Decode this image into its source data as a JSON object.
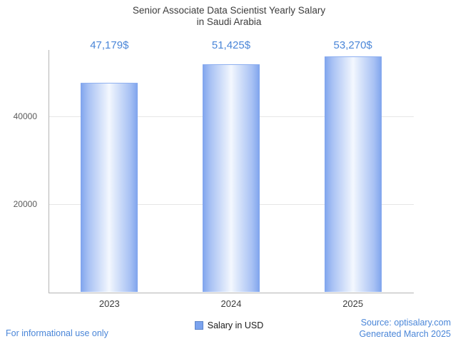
{
  "title_line1": "Senior Associate Data Scientist Yearly Salary",
  "title_line2": "in Saudi Arabia",
  "chart_data": {
    "type": "bar",
    "title": "Senior Associate Data Scientist Yearly Salary in Saudi Arabia",
    "categories": [
      "2023",
      "2024",
      "2025"
    ],
    "values": [
      47179,
      51425,
      53270
    ],
    "value_labels": [
      "47,179$",
      "51,425$",
      "53,270$"
    ],
    "series_name": "Salary in USD",
    "xlabel": "",
    "ylabel": "",
    "ylim": [
      0,
      55000
    ],
    "yticks": [
      20000,
      40000
    ],
    "ytick_labels": [
      "20000",
      "40000"
    ],
    "grid": true,
    "legend_position": "bottom",
    "bar_color": "#7ba3ee",
    "bar_gradient": "horizontal blue-white-blue cylinder"
  },
  "legend": {
    "label": "Salary in USD"
  },
  "footer": {
    "disclaimer": "For informational use only",
    "source": "Source: optisalary.com",
    "generated": "Generated March 2025"
  },
  "colors": {
    "label_blue": "#4a86d8",
    "title_gray": "#3c3c3c",
    "axis_gray": "#b5b5b5",
    "grid_gray": "#e6e6e6"
  }
}
